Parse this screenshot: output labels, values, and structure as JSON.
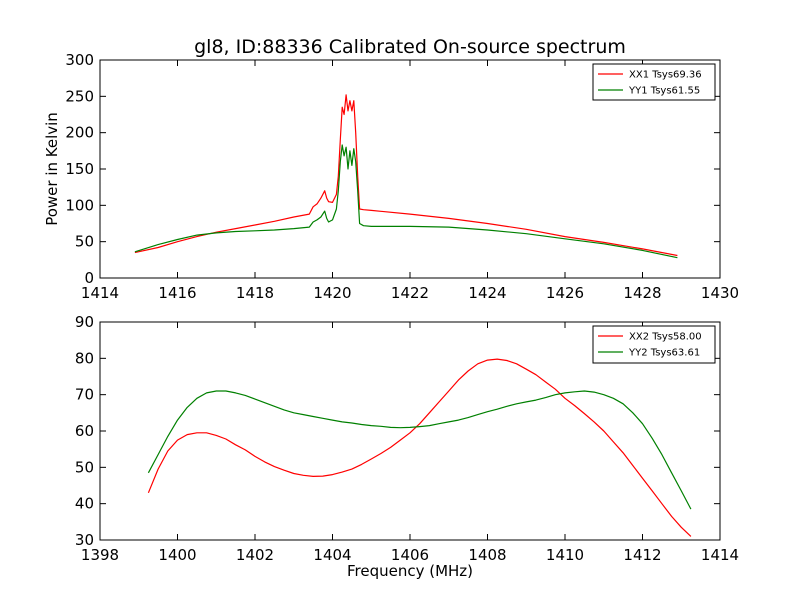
{
  "chart_data": [
    {
      "type": "line",
      "title": "gl8, ID:88336 Calibrated On-source spectrum",
      "xlabel": "",
      "ylabel": "Power in Kelvin",
      "xlim": [
        1414,
        1430
      ],
      "ylim": [
        0,
        300
      ],
      "xticks": [
        "1414",
        "1416",
        "1418",
        "1420",
        "1422",
        "1424",
        "1426",
        "1428",
        "1430"
      ],
      "yticks": [
        "0",
        "50",
        "100",
        "150",
        "200",
        "250",
        "300"
      ],
      "grid": false,
      "legend_position": "top-right",
      "series": [
        {
          "name": "XX1 Tsys69.36",
          "color": "#ff0000",
          "x": [
            1414.9,
            1415.5,
            1416.0,
            1416.5,
            1417.0,
            1417.5,
            1418.0,
            1418.5,
            1419.0,
            1419.4,
            1419.5,
            1419.6,
            1419.7,
            1419.8,
            1419.85,
            1419.9,
            1420.0,
            1420.1,
            1420.15,
            1420.2,
            1420.25,
            1420.3,
            1420.35,
            1420.4,
            1420.45,
            1420.5,
            1420.55,
            1420.6,
            1420.65,
            1420.7,
            1420.8,
            1421.0,
            1422.0,
            1423.0,
            1424.0,
            1425.0,
            1426.0,
            1427.0,
            1428.0,
            1428.9
          ],
          "y": [
            35,
            42,
            50,
            57,
            63,
            68,
            73,
            78,
            84,
            88,
            98,
            102,
            110,
            120,
            110,
            105,
            104,
            115,
            140,
            190,
            235,
            225,
            252,
            230,
            244,
            230,
            244,
            200,
            140,
            95,
            94,
            93,
            88,
            82,
            75,
            67,
            57,
            49,
            40,
            31
          ]
        },
        {
          "name": "YY1 Tsys61.55",
          "color": "#008000",
          "x": [
            1414.9,
            1415.5,
            1416.0,
            1416.5,
            1417.0,
            1417.5,
            1418.0,
            1418.5,
            1419.0,
            1419.4,
            1419.5,
            1419.6,
            1419.7,
            1419.8,
            1419.85,
            1419.9,
            1420.0,
            1420.1,
            1420.15,
            1420.2,
            1420.25,
            1420.3,
            1420.35,
            1420.4,
            1420.45,
            1420.5,
            1420.55,
            1420.6,
            1420.65,
            1420.7,
            1420.8,
            1421.0,
            1422.0,
            1423.0,
            1424.0,
            1425.0,
            1426.0,
            1427.0,
            1428.0,
            1428.9
          ],
          "y": [
            36,
            46,
            53,
            59,
            62,
            64,
            65,
            66,
            68,
            70,
            77,
            80,
            84,
            92,
            82,
            77,
            80,
            95,
            120,
            160,
            183,
            168,
            180,
            150,
            175,
            155,
            178,
            160,
            120,
            75,
            72,
            71,
            71,
            70,
            66,
            61,
            54,
            47,
            38,
            28
          ]
        }
      ]
    },
    {
      "type": "line",
      "title": "",
      "xlabel": "Frequency (MHz)",
      "ylabel": "",
      "xlim": [
        1398,
        1414
      ],
      "ylim": [
        30,
        90
      ],
      "xticks": [
        "1398",
        "1400",
        "1402",
        "1404",
        "1406",
        "1408",
        "1410",
        "1412",
        "1414"
      ],
      "yticks": [
        "30",
        "40",
        "50",
        "60",
        "70",
        "80",
        "90"
      ],
      "grid": false,
      "legend_position": "top-right",
      "series": [
        {
          "name": "XX2 Tsys58.00",
          "color": "#ff0000",
          "x": [
            1399.25,
            1399.5,
            1399.75,
            1400.0,
            1400.25,
            1400.5,
            1400.75,
            1401.0,
            1401.25,
            1401.5,
            1401.75,
            1402.0,
            1402.25,
            1402.5,
            1402.75,
            1403.0,
            1403.25,
            1403.5,
            1403.75,
            1404.0,
            1404.25,
            1404.5,
            1404.75,
            1405.0,
            1405.25,
            1405.5,
            1405.75,
            1406.0,
            1406.25,
            1406.5,
            1406.75,
            1407.0,
            1407.25,
            1407.5,
            1407.75,
            1408.0,
            1408.25,
            1408.5,
            1408.75,
            1409.0,
            1409.25,
            1409.5,
            1409.75,
            1410.0,
            1410.25,
            1410.5,
            1410.75,
            1411.0,
            1411.25,
            1411.5,
            1411.75,
            1412.0,
            1412.25,
            1412.5,
            1412.75,
            1413.0,
            1413.25
          ],
          "y": [
            43,
            49.5,
            54.5,
            57.5,
            59.0,
            59.5,
            59.5,
            58.8,
            57.8,
            56.2,
            54.8,
            53.0,
            51.5,
            50.2,
            49.2,
            48.3,
            47.8,
            47.5,
            47.6,
            48.0,
            48.7,
            49.5,
            50.8,
            52.3,
            53.8,
            55.5,
            57.5,
            59.5,
            62.0,
            65.0,
            68.0,
            71.0,
            74.0,
            76.5,
            78.5,
            79.5,
            79.8,
            79.4,
            78.5,
            77.0,
            75.5,
            73.5,
            71.5,
            69.0,
            67.0,
            64.8,
            62.5,
            60.0,
            57.0,
            54.0,
            50.5,
            47.0,
            43.5,
            40.0,
            36.5,
            33.5,
            31.0
          ]
        },
        {
          "name": "YY2 Tsys63.61",
          "color": "#008000",
          "x": [
            1399.25,
            1399.5,
            1399.75,
            1400.0,
            1400.25,
            1400.5,
            1400.75,
            1401.0,
            1401.25,
            1401.5,
            1401.75,
            1402.0,
            1402.25,
            1402.5,
            1402.75,
            1403.0,
            1403.25,
            1403.5,
            1403.75,
            1404.0,
            1404.25,
            1404.5,
            1404.75,
            1405.0,
            1405.25,
            1405.5,
            1405.75,
            1406.0,
            1406.25,
            1406.5,
            1406.75,
            1407.0,
            1407.25,
            1407.5,
            1407.75,
            1408.0,
            1408.25,
            1408.5,
            1408.75,
            1409.0,
            1409.25,
            1409.5,
            1409.75,
            1410.0,
            1410.25,
            1410.5,
            1410.75,
            1411.0,
            1411.25,
            1411.5,
            1411.75,
            1412.0,
            1412.25,
            1412.5,
            1412.75,
            1413.0,
            1413.25
          ],
          "y": [
            48.5,
            53.5,
            58.5,
            63.0,
            66.5,
            69.0,
            70.5,
            71.0,
            71.0,
            70.5,
            69.8,
            68.8,
            67.8,
            66.8,
            65.8,
            65.0,
            64.5,
            64.0,
            63.5,
            63.0,
            62.5,
            62.2,
            61.8,
            61.5,
            61.3,
            61.0,
            60.9,
            61.0,
            61.2,
            61.5,
            62.0,
            62.5,
            63.0,
            63.7,
            64.5,
            65.3,
            66.0,
            66.8,
            67.5,
            68.0,
            68.5,
            69.2,
            70.0,
            70.5,
            70.8,
            71.0,
            70.7,
            70.0,
            69.0,
            67.5,
            65.0,
            62.0,
            58.0,
            53.5,
            48.5,
            43.5,
            38.5
          ]
        }
      ]
    }
  ]
}
